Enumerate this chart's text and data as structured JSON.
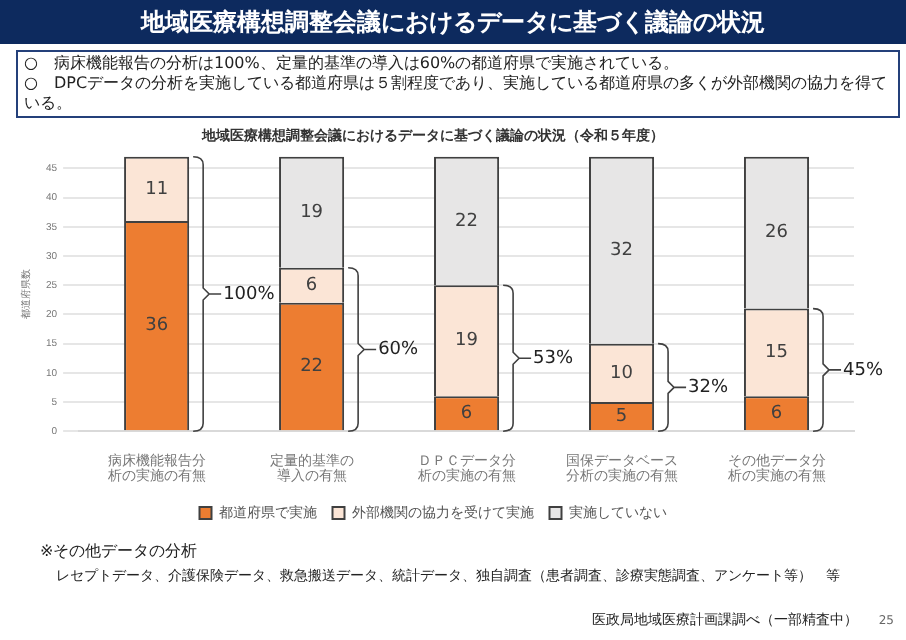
{
  "chart_data": {
    "type": "bar",
    "title": "地域医療構想調整会議におけるデータに基づく議論の状況",
    "subtitle": "地域医療構想調整会議におけるデータに基づく議論の状況（令和５年度）",
    "ylabel": "都道府県数",
    "categories": [
      "病床機能報告分析の実施の有無",
      "定量的基準の導入の有無",
      "ＤＰＣデータ分析の実施の有無",
      "国保データベース分析の実施の有無",
      "その他データ分析の実施の有無"
    ],
    "series": [
      {
        "name": "都道府県で実施",
        "color": "#ed7d31",
        "values": [
          36,
          22,
          6,
          5,
          6
        ]
      },
      {
        "name": "外部機関の協力を受けて実施",
        "color": "#fbe5d6",
        "values": [
          11,
          6,
          19,
          10,
          15
        ]
      },
      {
        "name": "実施していない",
        "color": "#e7e6e6",
        "values": [
          null,
          19,
          22,
          32,
          26
        ]
      }
    ],
    "stacked": true,
    "ylim": [
      0,
      47
    ],
    "yticks": [
      0,
      5,
      10,
      15,
      20,
      25,
      30,
      35,
      40,
      45
    ],
    "grid": "y",
    "legend": "bottom",
    "data_labels": true,
    "annotations": [
      "○　病床機能報告の分析は100%、定量的基準の導入は60%の都道府県で実施されている。",
      "○　DPCデータの分析を実施している都道府県は５割程度であり、実施している都道府県の多くが外部機関の協力を得ている。",
      "100%",
      "60%",
      "53%",
      "32%",
      "45%",
      "※その他データの分析",
      "レセプトデータ、介護保険データ、救急搬送データ、統計データ、独自調査（患者調査、診療実態調査、アンケート等）　等",
      "医政局地域医療計画課調べ（一部精査中）",
      "25"
    ]
  }
}
